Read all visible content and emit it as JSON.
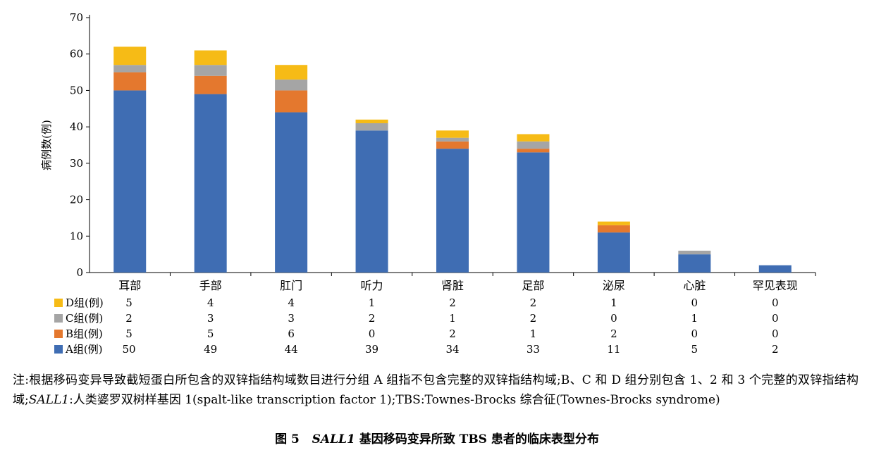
{
  "chart_data": {
    "type": "bar",
    "stacked": true,
    "ylabel": "病例数(例)",
    "ylim": [
      0,
      70
    ],
    "yticks": [
      0,
      10,
      20,
      30,
      40,
      50,
      60,
      70
    ],
    "grid": false,
    "legend": "bottom-table",
    "categories": [
      "耳部",
      "手部",
      "肛门",
      "听力",
      "肾脏",
      "足部",
      "泌尿",
      "心脏",
      "罕见表现"
    ],
    "series": [
      {
        "name": "A组(例)",
        "color": "#3F6DB3",
        "values": [
          50,
          49,
          44,
          39,
          34,
          33,
          11,
          5,
          2
        ]
      },
      {
        "name": "B组(例)",
        "color": "#E4782E",
        "values": [
          5,
          5,
          6,
          0,
          2,
          1,
          2,
          0,
          0
        ]
      },
      {
        "name": "C组(例)",
        "color": "#A5A5A5",
        "values": [
          2,
          3,
          3,
          2,
          1,
          2,
          0,
          1,
          0
        ]
      },
      {
        "name": "D组(例)",
        "color": "#F6BB16",
        "values": [
          5,
          4,
          4,
          1,
          2,
          2,
          1,
          0,
          0
        ]
      }
    ],
    "table_order": [
      "D组(例)",
      "C组(例)",
      "B组(例)",
      "A组(例)"
    ]
  },
  "note": {
    "prefix": "注:根据移码变异导致截短蛋白所包含的双锌指结构域数目进行分组 A 组指不包含完整的双锌指结构域;B、C 和 D 组分别包含 1、2 和 3 个完整的双锌指结构域;",
    "gene": "SALL1",
    "suffix": ":人类婆罗双树样基因 1(spalt-like transcription factor 1);TBS:Townes-Brocks 综合征(Townes-Brocks syndrome)"
  },
  "caption": {
    "label": "图 5",
    "gene": "SALL1",
    "text": "基因移码变异所致 TBS 患者的临床表型分布"
  }
}
